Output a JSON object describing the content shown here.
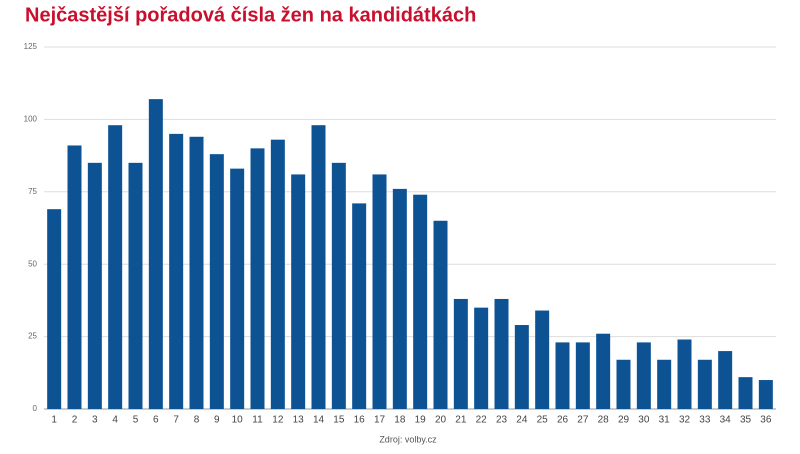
{
  "chart_data": {
    "type": "bar",
    "title": "Nejčastější pořadová čísla žen na kandidátkách",
    "categories": [
      "1",
      "2",
      "3",
      "4",
      "5",
      "6",
      "7",
      "8",
      "9",
      "10",
      "11",
      "12",
      "13",
      "14",
      "15",
      "16",
      "17",
      "18",
      "19",
      "20",
      "21",
      "22",
      "23",
      "24",
      "25",
      "26",
      "27",
      "28",
      "29",
      "30",
      "31",
      "32",
      "33",
      "34",
      "35",
      "36"
    ],
    "values": [
      69,
      91,
      85,
      98,
      85,
      107,
      95,
      94,
      88,
      83,
      90,
      93,
      81,
      98,
      85,
      71,
      81,
      76,
      74,
      65,
      38,
      35,
      38,
      29,
      34,
      23,
      23,
      26,
      17,
      23,
      17,
      24,
      17,
      20,
      11,
      10
    ],
    "color": "#0d5394",
    "ylim": [
      0,
      125
    ],
    "yticks": [
      0,
      25,
      50,
      75,
      100,
      125
    ],
    "grid": true,
    "source": "Zdroj: volby.cz"
  }
}
